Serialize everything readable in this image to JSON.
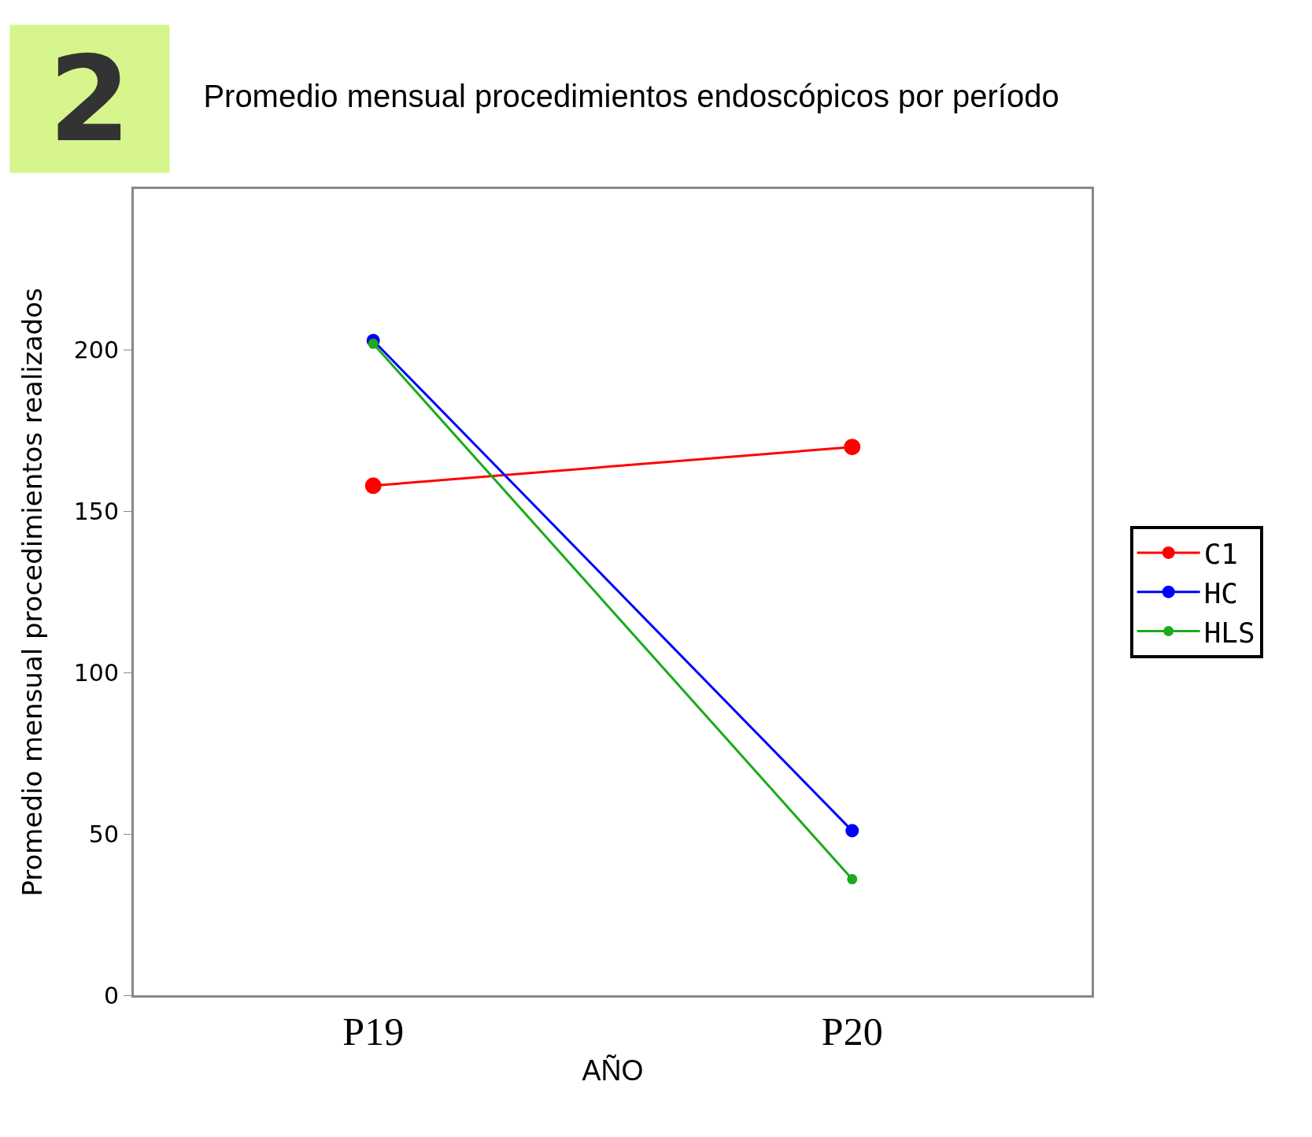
{
  "chart_data": {
    "type": "line",
    "title": "Promedio mensual procedimientos endoscópicos por período",
    "xlabel": "AÑO",
    "ylabel": "Promedio mensual procedimientos realizados",
    "categories": [
      "P19",
      "P20"
    ],
    "series": [
      {
        "name": "C1",
        "color": "#ff0000",
        "values": [
          158,
          170
        ]
      },
      {
        "name": "HC",
        "color": "#0000ff",
        "values": [
          203,
          51
        ]
      },
      {
        "name": "HLS",
        "color": "#1aab1a",
        "values": [
          202,
          36
        ]
      }
    ],
    "ylim": [
      0,
      250
    ],
    "yticks": [
      0,
      50,
      100,
      150,
      200
    ],
    "legend": "right",
    "marker": "circle",
    "line_style": "solid",
    "annotations": [
      "2"
    ]
  }
}
